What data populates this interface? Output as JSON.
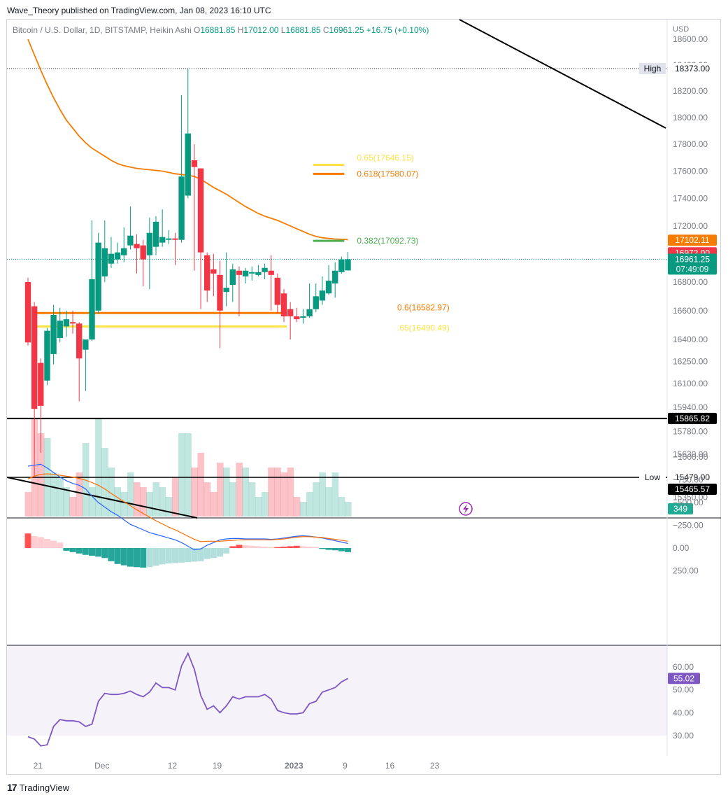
{
  "publisher_line": "Wave_Theory published on TradingView.com, Jan 08, 2023 16:10 UTC",
  "footer": {
    "logo": "17",
    "brand": "TradingView"
  },
  "colors": {
    "up": "#089981",
    "down": "#f23645",
    "ema": "#f57c00",
    "fib_yellow": "#fbe340",
    "fib_orange": "#f57c00",
    "fib_green": "#4caf50",
    "macd_line": "#2962ff",
    "signal_line": "#ff6d00",
    "rsi": "#7e57c2",
    "trendline": "#000000"
  },
  "chart_data": [
    {
      "type": "candlestick",
      "legend": {
        "symbol": "Bitcoin / U.S. Dollar, 1D, BITSTAMP, Heikin Ashi",
        "o_label": "O",
        "o": "16881.85",
        "h_label": "H",
        "h": "17012.00",
        "l_label": "L",
        "l": "16881.85",
        "c_label": "C",
        "c": "16961.25",
        "change": "+16.75 (+0.10%)"
      },
      "currency": "USD",
      "x_ticks": [
        {
          "label": "21",
          "i": 2
        },
        {
          "label": "Dec",
          "i": 12
        },
        {
          "label": "12",
          "i": 23
        },
        {
          "label": "19",
          "i": 30
        },
        {
          "label": "2023",
          "i": 42
        },
        {
          "label": "9",
          "i": 50
        },
        {
          "label": "16",
          "i": 57
        },
        {
          "label": "23",
          "i": 64
        }
      ],
      "y_ticks": [
        "18600.00",
        "18400.00",
        "18200.00",
        "18000.00",
        "17800.00",
        "17600.00",
        "17400.00",
        "17200.00",
        "16800.00",
        "16600.00",
        "16400.00",
        "16250.00",
        "16100.00",
        "15940.00",
        "15780.00",
        "15630.00",
        "15479.00",
        "15350.00"
      ],
      "y_scale": "log",
      "candles": [
        {
          "o": 16800,
          "h": 16830,
          "l": 16360,
          "c": 16380
        },
        {
          "o": 16630,
          "h": 16660,
          "l": 15480,
          "c": 15930
        },
        {
          "o": 16240,
          "h": 16270,
          "l": 15640,
          "c": 15950
        },
        {
          "o": 16120,
          "h": 16480,
          "l": 16090,
          "c": 16460
        },
        {
          "o": 16300,
          "h": 16640,
          "l": 16230,
          "c": 16570
        },
        {
          "o": 16410,
          "h": 16620,
          "l": 16380,
          "c": 16530
        },
        {
          "o": 16490,
          "h": 16600,
          "l": 16420,
          "c": 16540
        },
        {
          "o": 16520,
          "h": 16600,
          "l": 16440,
          "c": 16510
        },
        {
          "o": 16510,
          "h": 16520,
          "l": 15980,
          "c": 16270
        },
        {
          "o": 16330,
          "h": 16380,
          "l": 16050,
          "c": 16400
        },
        {
          "o": 16400,
          "h": 17240,
          "l": 16390,
          "c": 16820
        },
        {
          "o": 16600,
          "h": 17150,
          "l": 16580,
          "c": 17080
        },
        {
          "o": 16840,
          "h": 17240,
          "l": 16800,
          "c": 17040
        },
        {
          "o": 16930,
          "h": 17120,
          "l": 16900,
          "c": 17000
        },
        {
          "o": 16960,
          "h": 17080,
          "l": 16930,
          "c": 17010
        },
        {
          "o": 16990,
          "h": 17190,
          "l": 16940,
          "c": 17040
        },
        {
          "o": 17060,
          "h": 17340,
          "l": 17030,
          "c": 17130
        },
        {
          "o": 17070,
          "h": 17140,
          "l": 16860,
          "c": 17040
        },
        {
          "o": 17060,
          "h": 17100,
          "l": 16770,
          "c": 16960
        },
        {
          "o": 16990,
          "h": 17260,
          "l": 16750,
          "c": 17150
        },
        {
          "o": 17050,
          "h": 17270,
          "l": 16990,
          "c": 17230
        },
        {
          "o": 17080,
          "h": 17320,
          "l": 17050,
          "c": 17120
        },
        {
          "o": 17100,
          "h": 17170,
          "l": 17070,
          "c": 17110
        },
        {
          "o": 17110,
          "h": 17150,
          "l": 16920,
          "c": 17100
        },
        {
          "o": 17100,
          "h": 18170,
          "l": 17080,
          "c": 17560
        },
        {
          "o": 17420,
          "h": 18373,
          "l": 17400,
          "c": 17880
        },
        {
          "o": 17680,
          "h": 17800,
          "l": 16880,
          "c": 17630
        },
        {
          "o": 17620,
          "h": 17620,
          "l": 16610,
          "c": 17010
        },
        {
          "o": 16990,
          "h": 17010,
          "l": 16660,
          "c": 16740
        },
        {
          "o": 16890,
          "h": 17000,
          "l": 16700,
          "c": 16860
        },
        {
          "o": 16850,
          "h": 16950,
          "l": 16340,
          "c": 16600
        },
        {
          "o": 16730,
          "h": 17010,
          "l": 16630,
          "c": 16760
        },
        {
          "o": 16780,
          "h": 16930,
          "l": 16660,
          "c": 16890
        },
        {
          "o": 16880,
          "h": 16910,
          "l": 16560,
          "c": 16850
        },
        {
          "o": 16840,
          "h": 16900,
          "l": 16790,
          "c": 16880
        },
        {
          "o": 16860,
          "h": 16910,
          "l": 16810,
          "c": 16870
        },
        {
          "o": 16850,
          "h": 16920,
          "l": 16840,
          "c": 16870
        },
        {
          "o": 16870,
          "h": 16930,
          "l": 16820,
          "c": 16900
        },
        {
          "o": 16880,
          "h": 16990,
          "l": 16600,
          "c": 16850
        },
        {
          "o": 16830,
          "h": 16860,
          "l": 16580,
          "c": 16640
        },
        {
          "o": 16720,
          "h": 16750,
          "l": 16520,
          "c": 16560
        },
        {
          "o": 16610,
          "h": 16660,
          "l": 16400,
          "c": 16560
        },
        {
          "o": 16560,
          "h": 16620,
          "l": 16520,
          "c": 16540
        },
        {
          "o": 16550,
          "h": 16610,
          "l": 16510,
          "c": 16560
        },
        {
          "o": 16560,
          "h": 16790,
          "l": 16550,
          "c": 16610
        },
        {
          "o": 16610,
          "h": 16790,
          "l": 16590,
          "c": 16700
        },
        {
          "o": 16670,
          "h": 16840,
          "l": 16640,
          "c": 16740
        },
        {
          "o": 16720,
          "h": 16920,
          "l": 16710,
          "c": 16810
        },
        {
          "o": 16790,
          "h": 16940,
          "l": 16690,
          "c": 16880
        },
        {
          "o": 16870,
          "h": 16980,
          "l": 16860,
          "c": 16960
        },
        {
          "o": 16881.85,
          "h": 17012,
          "l": 16881.85,
          "c": 16961.25
        }
      ],
      "ema": [
        18600,
        18480,
        18360,
        18250,
        18150,
        18060,
        17980,
        17920,
        17860,
        17810,
        17770,
        17740,
        17710,
        17680,
        17655,
        17640,
        17630,
        17620,
        17615,
        17610,
        17605,
        17600,
        17590,
        17580,
        17575,
        17570,
        17560,
        17540,
        17510,
        17480,
        17455,
        17430,
        17400,
        17370,
        17340,
        17315,
        17290,
        17270,
        17255,
        17240,
        17220,
        17200,
        17180,
        17160,
        17140,
        17125,
        17115,
        17110,
        17106,
        17104,
        17102
      ],
      "ema_label": "17102.11",
      "fib_levels": [
        {
          "label": "0.65(17646.15)",
          "value": 17646.15,
          "from_i": 45,
          "to_i": 49,
          "color": "#fbe340"
        },
        {
          "label": "0.618(17580.07)",
          "value": 17580.07,
          "from_i": 45,
          "to_i": 49,
          "color": "#f57c00"
        },
        {
          "label": "0.382(17092.73)",
          "value": 17092.73,
          "from_i": 45,
          "to_i": 49,
          "color": "#4caf50"
        },
        {
          "label": "0.618(16582.97)",
          "value": 16582.97,
          "from_i": 1,
          "to_i": 40,
          "color": "#f57c00"
        },
        {
          "label": "0.65(16490.49)",
          "value": 16490.49,
          "from_i": 1,
          "to_i": 40,
          "color": "#fbe340"
        }
      ],
      "fib_text_low": [
        {
          "text": "0.6",
          "tail": "(16582.97)"
        },
        {
          "text": "",
          "tail": ".65(16490.49)"
        }
      ],
      "high": {
        "label": "High",
        "value": "18373.00",
        "price": 18373
      },
      "low": {
        "label": "Low",
        "value": "15479.00",
        "price": 15479
      },
      "horizontal_support": {
        "value": "15865.82",
        "price": 15865.82
      },
      "low_line_2": {
        "value": "15465.57",
        "price": 15465.57
      },
      "price_labels": [
        {
          "value": "17102.11",
          "price": 17102.11,
          "color": "#f57c00"
        },
        {
          "value": "16972.00",
          "price": 16972.0,
          "color": "#f23645"
        },
        {
          "value": "16961.25",
          "price": 16961.25,
          "color": "#089981",
          "sub": "07:49:09"
        }
      ],
      "volume_badge": "349",
      "volume": [
        0.25,
        1.0,
        0.85,
        0.8,
        0.45,
        0.4,
        0.3,
        0.2,
        0.45,
        0.75,
        0.3,
        1.0,
        0.7,
        0.5,
        0.3,
        0.25,
        0.45,
        0.35,
        0.3,
        0.25,
        0.35,
        0.3,
        0.2,
        0.4,
        0.85,
        0.85,
        0.5,
        0.65,
        0.35,
        0.25,
        0.55,
        0.5,
        0.35,
        0.55,
        0.5,
        0.35,
        0.2,
        0.25,
        0.5,
        0.5,
        0.45,
        0.5,
        0.2,
        0.15,
        0.25,
        0.35,
        0.45,
        0.3,
        0.45,
        0.2,
        0.15
      ]
    },
    {
      "type": "macd",
      "y_ticks": [
        "250.00",
        "0.00",
        "−250.00",
        "−500.00",
        "−750.00",
        "−1000.00"
      ],
      "ylim": [
        -1000,
        250
      ],
      "histogram": [
        -160,
        -130,
        -120,
        -100,
        -80,
        -60,
        30,
        45,
        60,
        75,
        85,
        95,
        110,
        145,
        175,
        190,
        205,
        210,
        215,
        210,
        195,
        180,
        170,
        165,
        160,
        155,
        150,
        145,
        120,
        110,
        95,
        60,
        -20,
        -35,
        -30,
        -25,
        -20,
        -15,
        -10,
        -10,
        -15,
        -20,
        -25,
        -20,
        -15,
        -10,
        10,
        20,
        25,
        35,
        45
      ],
      "macd": [
        -900,
        -910,
        -920,
        -880,
        -830,
        -780,
        -740,
        -710,
        -690,
        -650,
        -570,
        -500,
        -450,
        -400,
        -360,
        -310,
        -260,
        -230,
        -200,
        -170,
        -150,
        -130,
        -110,
        -90,
        -60,
        -20,
        20,
        10,
        -30,
        -60,
        -90,
        -100,
        -105,
        -105,
        -100,
        -100,
        -100,
        -100,
        -95,
        -100,
        -110,
        -120,
        -130,
        -135,
        -130,
        -120,
        -110,
        -95,
        -80,
        -65,
        -50
      ],
      "signal": [
        -760,
        -790,
        -810,
        -815,
        -810,
        -800,
        -790,
        -780,
        -765,
        -745,
        -720,
        -690,
        -650,
        -600,
        -555,
        -510,
        -465,
        -420,
        -380,
        -340,
        -300,
        -265,
        -230,
        -200,
        -165,
        -130,
        -95,
        -70,
        -75,
        -75,
        -75,
        -80,
        -85,
        -90,
        -90,
        -90,
        -90,
        -90,
        -90,
        -95,
        -100,
        -110,
        -120,
        -125,
        -125,
        -120,
        -115,
        -105,
        -95,
        -85,
        -75
      ]
    },
    {
      "type": "rsi",
      "y_ticks": [
        "60.00",
        "50.00",
        "40.00",
        "30.00"
      ],
      "ylim": [
        25,
        68
      ],
      "band": [
        30,
        70
      ],
      "last_label": "55.02",
      "values": [
        29.5,
        28.5,
        25.5,
        26,
        34,
        37,
        36.5,
        36.5,
        36,
        34,
        35,
        45,
        48.5,
        48,
        48,
        48.5,
        49.5,
        48,
        47,
        49,
        53,
        51,
        51,
        50,
        60.5,
        66,
        59,
        47.5,
        41.5,
        43,
        40,
        43,
        47,
        46,
        47,
        47,
        47,
        48,
        46,
        41,
        40,
        39.5,
        39.5,
        40,
        44,
        45,
        49,
        50,
        51,
        53.5,
        55.02
      ]
    }
  ]
}
